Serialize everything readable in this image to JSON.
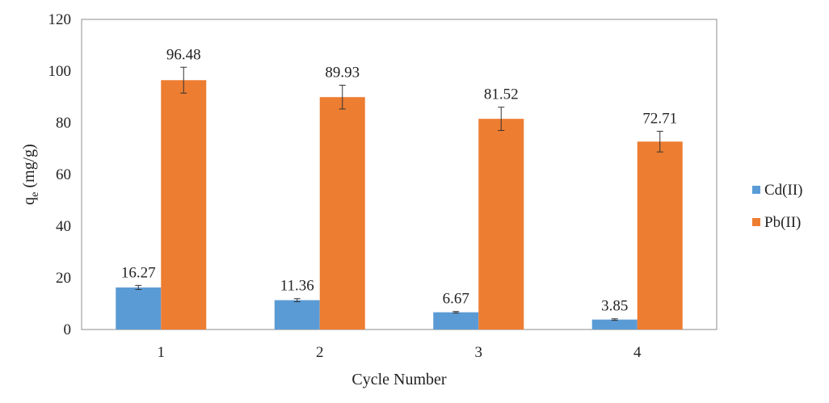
{
  "chart_data": {
    "type": "bar",
    "categories": [
      "1",
      "2",
      "3",
      "4"
    ],
    "series": [
      {
        "name": "Cd(II)",
        "values": [
          16.27,
          11.36,
          6.67,
          3.85
        ],
        "errors": [
          0.8,
          0.6,
          0.3,
          0.3
        ],
        "color": "#5B9BD5"
      },
      {
        "name": "Pb(II)",
        "values": [
          96.48,
          89.93,
          81.52,
          72.71
        ],
        "errors": [
          5.0,
          4.6,
          4.5,
          4.0
        ],
        "color": "#ED7D31"
      }
    ],
    "data_labels": {
      "Cd(II)": [
        "16.27",
        "11.36",
        "6.67",
        "3.85"
      ],
      "Pb(II)": [
        "96.48",
        "89.93",
        "81.52",
        "72.71"
      ]
    },
    "title": "",
    "xlabel": "Cycle Number",
    "ylabel_main": "q",
    "ylabel_sub": "e",
    "ylabel_unit": " (mg/g)",
    "ylim": [
      0,
      120
    ],
    "yticks": [
      "0",
      "20",
      "40",
      "60",
      "80",
      "100",
      "120"
    ],
    "grid": false,
    "legend_position": "right"
  }
}
